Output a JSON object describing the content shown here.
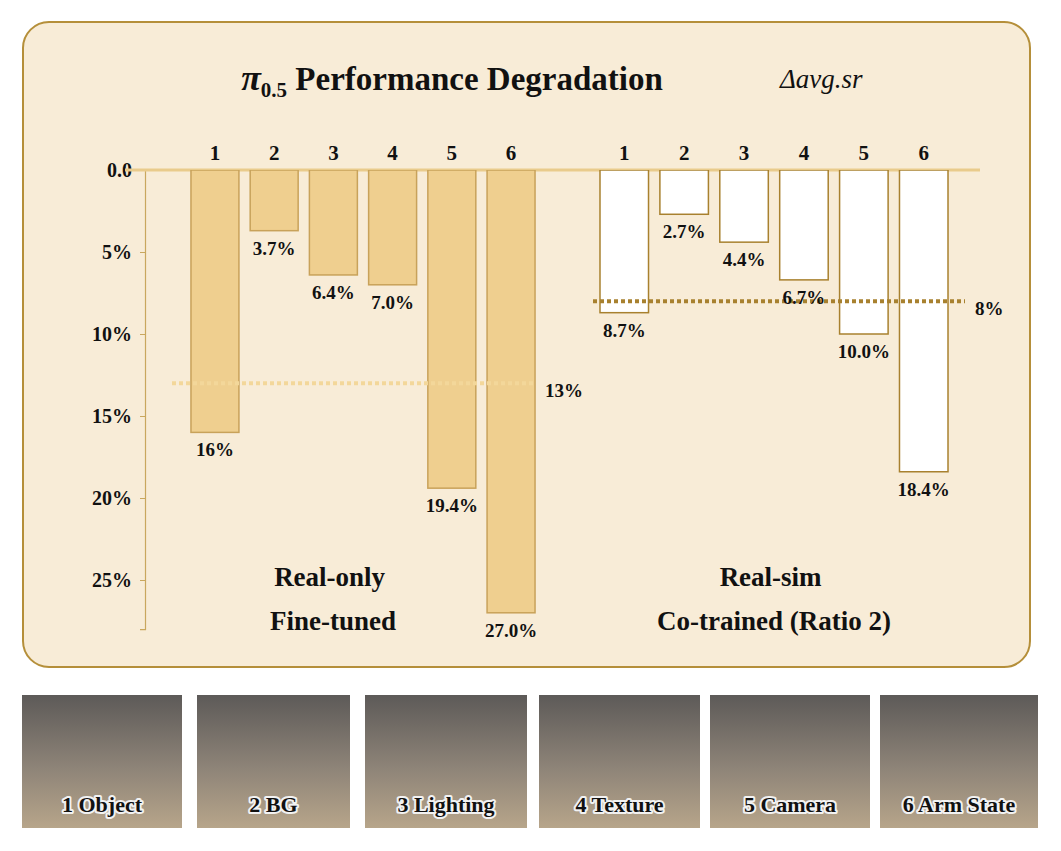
{
  "chart_data": {
    "type": "bar",
    "title": "π0.5 Performance Degradation",
    "subtitle": "Δavg.sr",
    "categories": [
      "1",
      "2",
      "3",
      "4",
      "5",
      "6"
    ],
    "ylim": [
      0,
      28
    ],
    "yticks": [
      {
        "value": 0,
        "label": "0.0"
      },
      {
        "value": 5,
        "label": "5%"
      },
      {
        "value": 10,
        "label": "10%"
      },
      {
        "value": 15,
        "label": "15%"
      },
      {
        "value": 20,
        "label": "20%"
      },
      {
        "value": 25,
        "label": "25%"
      }
    ],
    "data_labels": true,
    "grid": false,
    "series": [
      {
        "name": "Real-only Fine-tuned",
        "color": "#efcf8f",
        "values": [
          16,
          3.7,
          6.4,
          7.0,
          19.4,
          27.0
        ],
        "value_labels": [
          "16%",
          "3.7%",
          "6.4%",
          "7.0%",
          "19.4%",
          "27.0%"
        ],
        "average": {
          "value": 13,
          "label": "13%"
        }
      },
      {
        "name": "Real-sim Co-trained (Ratio 2)",
        "color": "#ffffff",
        "values": [
          8.7,
          2.7,
          4.4,
          6.7,
          10.0,
          18.4
        ],
        "value_labels": [
          "8.7%",
          "2.7%",
          "4.4%",
          "6.7%",
          "10.0%",
          "18.4%"
        ],
        "average": {
          "value": 8,
          "label": "8%"
        }
      }
    ]
  },
  "image_strip": {
    "captions": [
      "1 Object",
      "2 BG",
      "3 Lighting",
      "4 Texture",
      "5 Camera",
      "6 Arm State"
    ]
  }
}
